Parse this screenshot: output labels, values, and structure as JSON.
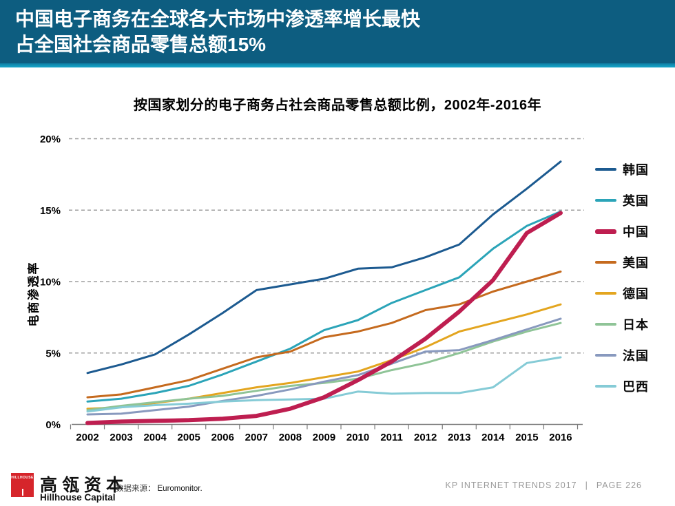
{
  "header": {
    "line1": "中国电子商务在全球各大市场中渗透率增长最快",
    "line2": "占全国社会商品零售总额15%"
  },
  "chart_data": {
    "type": "line",
    "title": "按国家划分的电子商务占社会商品零售总额比例，2002年-2016年",
    "ylabel": "电商渗透率",
    "xlabel": "",
    "x": [
      2002,
      2003,
      2004,
      2005,
      2006,
      2007,
      2008,
      2009,
      2010,
      2011,
      2012,
      2013,
      2014,
      2015,
      2016
    ],
    "y_tick_labels": [
      "0%",
      "5%",
      "10%",
      "15%",
      "20%"
    ],
    "y_ticks": [
      0,
      5,
      10,
      15,
      20
    ],
    "ylim": [
      0,
      20
    ],
    "grid": "horizontal-dashed",
    "legend_position": "right",
    "series": [
      {
        "name": "韩国",
        "slug": "south-korea",
        "color": "#1c5a90",
        "line_width": 3,
        "values": [
          3.6,
          4.2,
          4.9,
          6.3,
          7.8,
          9.4,
          9.8,
          10.2,
          10.9,
          11.0,
          11.7,
          12.6,
          14.7,
          16.5,
          18.4
        ]
      },
      {
        "name": "英国",
        "slug": "uk",
        "color": "#2ba4b8",
        "line_width": 3,
        "values": [
          1.6,
          1.8,
          2.2,
          2.7,
          3.5,
          4.4,
          5.3,
          6.6,
          7.3,
          8.5,
          9.4,
          10.3,
          12.3,
          13.9,
          14.9
        ]
      },
      {
        "name": "中国",
        "slug": "china",
        "color": "#be1e50",
        "line_width": 6,
        "values": [
          0.1,
          0.2,
          0.25,
          0.3,
          0.4,
          0.6,
          1.1,
          1.9,
          3.1,
          4.4,
          6.0,
          7.9,
          10.1,
          13.4,
          14.8
        ]
      },
      {
        "name": "美国",
        "slug": "us",
        "color": "#c56a1e",
        "line_width": 3,
        "values": [
          1.9,
          2.1,
          2.6,
          3.1,
          3.9,
          4.7,
          5.1,
          6.1,
          6.5,
          7.1,
          8.0,
          8.4,
          9.3,
          10.0,
          10.7
        ]
      },
      {
        "name": "德国",
        "slug": "germany",
        "color": "#e3a51f",
        "line_width": 3,
        "values": [
          1.1,
          1.2,
          1.5,
          1.8,
          2.2,
          2.6,
          2.9,
          3.3,
          3.7,
          4.5,
          5.4,
          6.5,
          7.1,
          7.7,
          8.4
        ]
      },
      {
        "name": "日本",
        "slug": "japan",
        "color": "#8fc497",
        "line_width": 3,
        "values": [
          1.0,
          1.3,
          1.55,
          1.8,
          2.0,
          2.35,
          2.7,
          2.9,
          3.2,
          3.8,
          4.3,
          5.0,
          5.8,
          6.5,
          7.1
        ]
      },
      {
        "name": "法国",
        "slug": "france",
        "color": "#8899be",
        "line_width": 3,
        "values": [
          0.7,
          0.75,
          1.0,
          1.25,
          1.65,
          2.0,
          2.45,
          3.0,
          3.45,
          4.25,
          5.1,
          5.2,
          5.9,
          6.65,
          7.4
        ]
      },
      {
        "name": "巴西",
        "slug": "brazil",
        "color": "#85cbd6",
        "line_width": 3,
        "values": [
          0.9,
          1.2,
          1.35,
          1.45,
          1.6,
          1.7,
          1.75,
          1.8,
          2.3,
          2.15,
          2.2,
          2.2,
          2.6,
          4.3,
          4.7
        ]
      }
    ]
  },
  "footer": {
    "logo_mark": "HILLHOUSE",
    "logo_cn": "高瓴资本",
    "logo_en": "Hillhouse Capital",
    "source_label": "数据来源：",
    "source_value": "Euromonitor.",
    "deck": "KP INTERNET TRENDS 2017",
    "separator": "|",
    "page": "PAGE 226"
  },
  "colors": {
    "header_bg": "#0d5d80",
    "header_stripe": "#17a6c9",
    "logo_red": "#d6252b",
    "gridline": "#9e9e9e",
    "axis": "#7a7a7a"
  }
}
